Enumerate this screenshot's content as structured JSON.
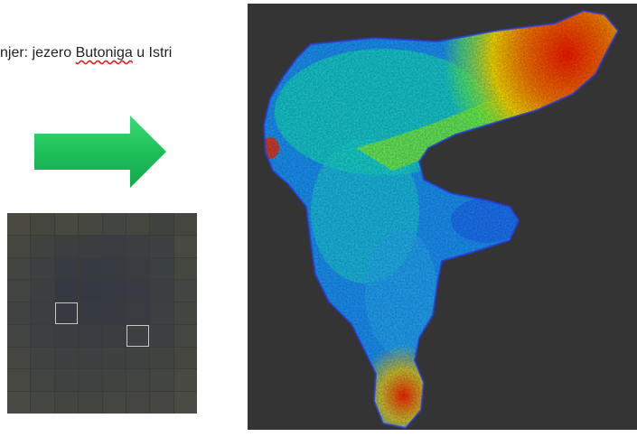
{
  "caption": {
    "prefix": "njer: jezero ",
    "lake_name": "Butoniga",
    "suffix": " u Istri"
  },
  "icons": {
    "arrow": "right-arrow-icon"
  },
  "colors": {
    "arrow_green": "#1fbf5a",
    "map_background": "#343434"
  },
  "pixel_mosaic": {
    "cols": 8,
    "rows": 9,
    "cells": [
      "#4a4a40",
      "#45463e",
      "#48493f",
      "#46473e",
      "#434540",
      "#44463f",
      "#3f423f",
      "#45463f",
      "#45463e",
      "#3f433f",
      "#3b3f40",
      "#3a3e41",
      "#393d41",
      "#3b3f41",
      "#3d4141",
      "#484a41",
      "#424540",
      "#3c4041",
      "#373c42",
      "#363a41",
      "#373b42",
      "#393d42",
      "#3b4042",
      "#454741",
      "#414440",
      "#3b3f42",
      "#353a42",
      "#343942",
      "#363a42",
      "#383c42",
      "#3b3f42",
      "#434542",
      "#404341",
      "#3b3f41",
      "#373b41",
      "#363a41",
      "#373b41",
      "#393d41",
      "#3c4041",
      "#434541",
      "#424441",
      "#3c4041",
      "#3a3e41",
      "#393d41",
      "#3a3e40",
      "#3c4040",
      "#3d4141",
      "#444641",
      "#454641",
      "#3f4240",
      "#3c4040",
      "#3c4040",
      "#3d4140",
      "#3e4240",
      "#404340",
      "#464741",
      "#474842",
      "#424441",
      "#3f4240",
      "#3f4240",
      "#404340",
      "#414440",
      "#424540",
      "#484942",
      "#494a43",
      "#454742",
      "#434541",
      "#434541",
      "#444641",
      "#454641",
      "#464742",
      "#4a4b43"
    ],
    "selected": [
      34,
      45
    ]
  }
}
